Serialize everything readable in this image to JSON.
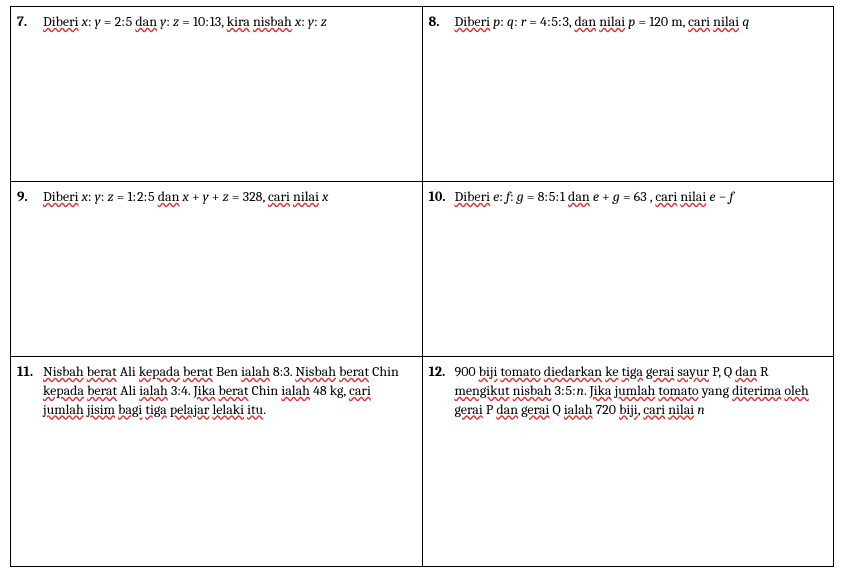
{
  "q7": {
    "num": "7.",
    "segments": [
      {
        "t": "Diberi",
        "u": true
      },
      {
        "t": " "
      },
      {
        "t": "x",
        "i": true
      },
      {
        "t": ": "
      },
      {
        "t": "y",
        "i": true
      },
      {
        "t": " = 2: 5 "
      },
      {
        "t": "dan",
        "u": true
      },
      {
        "t": " "
      },
      {
        "t": "y",
        "i": true
      },
      {
        "t": ": "
      },
      {
        "t": "z",
        "i": true
      },
      {
        "t": "  =  10: 13, "
      },
      {
        "t": "kira",
        "u": true
      },
      {
        "t": " "
      },
      {
        "t": "nisbah",
        "u": true
      },
      {
        "t": " "
      },
      {
        "t": "x",
        "i": true
      },
      {
        "t": ": "
      },
      {
        "t": "y",
        "i": true
      },
      {
        "t": ": "
      },
      {
        "t": "z",
        "i": true
      }
    ]
  },
  "q8": {
    "num": "8.",
    "segments": [
      {
        "t": "Diberi",
        "u": true
      },
      {
        "t": " "
      },
      {
        "t": "p",
        "i": true
      },
      {
        "t": ": "
      },
      {
        "t": "q",
        "i": true
      },
      {
        "t": ": "
      },
      {
        "t": "r",
        "i": true
      },
      {
        "t": "  =  4: 5: 3, "
      },
      {
        "t": "dan",
        "u": true
      },
      {
        "t": " "
      },
      {
        "t": "nilai",
        "u": true
      },
      {
        "t": " "
      },
      {
        "t": "p",
        "i": true
      },
      {
        "t": " = 120 m, "
      },
      {
        "t": "cari",
        "u": true
      },
      {
        "t": " "
      },
      {
        "t": "nilai",
        "u": true
      },
      {
        "t": " "
      },
      {
        "t": "q",
        "i": true
      }
    ]
  },
  "q9": {
    "num": "9.",
    "segments": [
      {
        "t": "Diberi",
        "u": true
      },
      {
        "t": " "
      },
      {
        "t": "x",
        "i": true
      },
      {
        "t": ": "
      },
      {
        "t": "y",
        "i": true
      },
      {
        "t": ": "
      },
      {
        "t": "z",
        "i": true
      },
      {
        "t": "  =  1: 2: 5 "
      },
      {
        "t": "dan",
        "u": true
      },
      {
        "t": " "
      },
      {
        "t": "x",
        "i": true
      },
      {
        "t": " + "
      },
      {
        "t": "y",
        "i": true
      },
      {
        "t": " + "
      },
      {
        "t": "z",
        "i": true
      },
      {
        "t": " = 328, "
      },
      {
        "t": "cari",
        "u": true
      },
      {
        "t": " "
      },
      {
        "t": "nilai",
        "u": true
      },
      {
        "t": " "
      },
      {
        "t": "x",
        "i": true
      }
    ]
  },
  "q10": {
    "num": "10.",
    "segments": [
      {
        "t": "Diberi",
        "u": true
      },
      {
        "t": " "
      },
      {
        "t": "e",
        "i": true
      },
      {
        "t": ": "
      },
      {
        "t": "f",
        "i": true
      },
      {
        "t": ": "
      },
      {
        "t": "g",
        "i": true
      },
      {
        "t": "  =  8: 5: 1 "
      },
      {
        "t": "dan",
        "u": true
      },
      {
        "t": " "
      },
      {
        "t": "e",
        "i": true
      },
      {
        "t": " + "
      },
      {
        "t": "g",
        "i": true
      },
      {
        "t": " = 63 , "
      },
      {
        "t": "cari",
        "u": true
      },
      {
        "t": " "
      },
      {
        "t": "nilai",
        "u": true
      },
      {
        "t": " "
      },
      {
        "t": "e",
        "i": true
      },
      {
        "t": " − "
      },
      {
        "t": "f",
        "i": true
      }
    ]
  },
  "q11": {
    "num": "11.",
    "segments": [
      {
        "t": "Nisbah",
        "u": true
      },
      {
        "t": " "
      },
      {
        "t": "berat",
        "u": true
      },
      {
        "t": " Ali "
      },
      {
        "t": "kepada",
        "u": true
      },
      {
        "t": " "
      },
      {
        "t": "berat",
        "u": true
      },
      {
        "t": " Ben "
      },
      {
        "t": "ialah",
        "u": true
      },
      {
        "t": " 8:3. "
      },
      {
        "t": "Nisbah",
        "u": true
      },
      {
        "t": " "
      },
      {
        "t": "berat",
        "u": true
      },
      {
        "t": " Chin "
      },
      {
        "t": "kepada",
        "u": true
      },
      {
        "t": " "
      },
      {
        "t": "berat",
        "u": true
      },
      {
        "t": " Ali "
      },
      {
        "t": "ialah",
        "u": true
      },
      {
        "t": " 3:4. "
      },
      {
        "t": "Jika",
        "u": true
      },
      {
        "t": " "
      },
      {
        "t": "berat",
        "u": true
      },
      {
        "t": " Chin "
      },
      {
        "t": "ialah",
        "u": true
      },
      {
        "t": " 48 kg, "
      },
      {
        "t": "cari",
        "u": true
      },
      {
        "t": " "
      },
      {
        "t": "jumlah",
        "u": true
      },
      {
        "t": " "
      },
      {
        "t": "jisim",
        "u": true
      },
      {
        "t": " "
      },
      {
        "t": "bagi",
        "u": true
      },
      {
        "t": " "
      },
      {
        "t": "tiga",
        "u": true
      },
      {
        "t": " "
      },
      {
        "t": "pelajar",
        "u": true
      },
      {
        "t": " "
      },
      {
        "t": "lelaki",
        "u": true
      },
      {
        "t": " "
      },
      {
        "t": "itu",
        "u": true
      },
      {
        "t": "."
      }
    ]
  },
  "q12": {
    "num": "12.",
    "segments": [
      {
        "t": "900 "
      },
      {
        "t": "biji",
        "u": true
      },
      {
        "t": " "
      },
      {
        "t": "tomato",
        "u": true
      },
      {
        "t": " "
      },
      {
        "t": "diedarkan",
        "u": true
      },
      {
        "t": " "
      },
      {
        "t": "ke",
        "u": true
      },
      {
        "t": " "
      },
      {
        "t": "tiga",
        "u": true
      },
      {
        "t": " "
      },
      {
        "t": "gerai",
        "u": true
      },
      {
        "t": " "
      },
      {
        "t": "sayur",
        "u": true
      },
      {
        "t": " P, Q "
      },
      {
        "t": "dan",
        "u": true
      },
      {
        "t": " R "
      },
      {
        "t": "mengikut",
        "u": true
      },
      {
        "t": " "
      },
      {
        "t": "nisbah",
        "u": true
      },
      {
        "t": " 3: 5: "
      },
      {
        "t": "n",
        "i": true
      },
      {
        "t": ". "
      },
      {
        "t": "Jika",
        "u": true
      },
      {
        "t": " "
      },
      {
        "t": "jumlah",
        "u": true
      },
      {
        "t": " "
      },
      {
        "t": "tomato",
        "u": true
      },
      {
        "t": " yang "
      },
      {
        "t": "diterima",
        "u": true
      },
      {
        "t": " "
      },
      {
        "t": "oleh",
        "u": true
      },
      {
        "t": " "
      },
      {
        "t": "gerai",
        "u": true
      },
      {
        "t": " P "
      },
      {
        "t": "dan",
        "u": true
      },
      {
        "t": " "
      },
      {
        "t": "gerai",
        "u": true
      },
      {
        "t": " Q "
      },
      {
        "t": "ialah",
        "u": true
      },
      {
        "t": " 720 "
      },
      {
        "t": "biji",
        "u": true
      },
      {
        "t": ", "
      },
      {
        "t": "cari",
        "u": true
      },
      {
        "t": " "
      },
      {
        "t": "nilai",
        "u": true
      },
      {
        "t": " "
      },
      {
        "t": "n",
        "i": true
      }
    ]
  }
}
